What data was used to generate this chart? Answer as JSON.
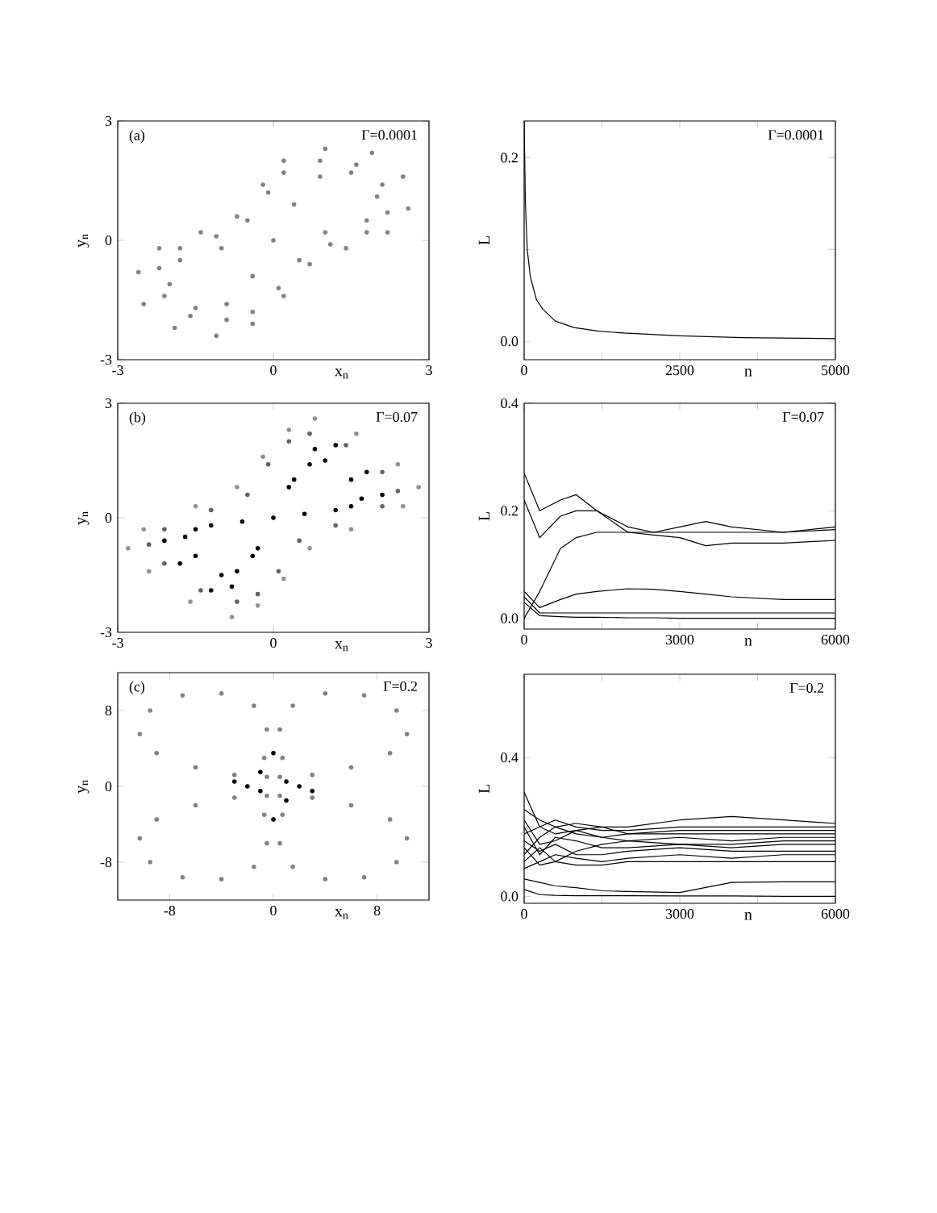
{
  "chart_data": [
    {
      "type": "scatter",
      "xlabel": "x$_{n}$",
      "ylabel": "y$_{n}$",
      "annotations": [
        "(a)",
        "Γ=0.0001"
      ],
      "xlim": [
        -3,
        3
      ],
      "ylim": [
        -3,
        3
      ],
      "xticks": [
        -3,
        0,
        3
      ],
      "yticks": [
        -3,
        0,
        3
      ],
      "series": [
        {
          "color": "#808080",
          "x": [
            0.2,
            1.0,
            1.9,
            2.5,
            2.6,
            2.2,
            1.4,
            0.7,
            0.2,
            -0.4,
            -1.1,
            -1.9,
            -2.5,
            -2.6,
            -2.2,
            -1.4,
            -0.7,
            -0.2
          ],
          "values": [
            2.0,
            2.3,
            2.2,
            1.6,
            0.8,
            0.2,
            -0.2,
            -0.6,
            -1.4,
            -2.1,
            -2.4,
            -2.2,
            -1.6,
            -0.8,
            -0.2,
            0.2,
            0.6,
            1.4
          ]
        },
        {
          "color": "#808080",
          "x": [
            0.2,
            0.9,
            1.6,
            2.1,
            2.2,
            1.8,
            1.1,
            0.5,
            0.1,
            -0.4,
            -0.9,
            -1.6,
            -2.1,
            -2.2,
            -1.8,
            -1.1,
            -0.5,
            -0.1
          ],
          "values": [
            1.7,
            2.0,
            1.9,
            1.4,
            0.7,
            0.2,
            -0.1,
            -0.5,
            -1.2,
            -1.8,
            -2.0,
            -1.9,
            -1.4,
            -0.7,
            -0.2,
            0.1,
            0.5,
            1.2
          ]
        },
        {
          "color": "#808080",
          "x": [
            0.4,
            0.9,
            1.5,
            2.0,
            1.8,
            1.0,
            0,
            -1.0,
            -1.8,
            -2.0,
            -1.5,
            -0.9,
            -0.4
          ],
          "values": [
            0.9,
            1.6,
            1.7,
            1.1,
            0.5,
            0.2,
            0,
            -0.2,
            -0.5,
            -1.1,
            -1.7,
            -1.6,
            -0.9
          ]
        }
      ]
    },
    {
      "type": "line",
      "xlabel": "n",
      "ylabel": "L",
      "annotations": [
        "Γ=0.0001"
      ],
      "xlim": [
        0,
        5000
      ],
      "ylim": [
        -0.02,
        0.24
      ],
      "xticks": [
        0,
        {
          "value": 1250,
          "label": null
        },
        2500,
        {
          "value": 3750,
          "label": null
        },
        5000
      ],
      "yticks": [
        {
          "value": 0,
          "label": "0.0"
        },
        {
          "value": 0.1,
          "label": null
        },
        {
          "value": 0.2,
          "label": "0.2"
        }
      ],
      "x": [
        0,
        20,
        50,
        100,
        200,
        300,
        500,
        800,
        1200,
        1600,
        2500,
        3500,
        5000
      ],
      "series": [
        {
          "color": "#000000",
          "values": [
            0.24,
            0.15,
            0.1,
            0.07,
            0.045,
            0.035,
            0.022,
            0.015,
            0.011,
            0.009,
            0.006,
            0.004,
            0.003
          ]
        }
      ]
    },
    {
      "type": "scatter",
      "xlabel": "x$_{n}$",
      "ylabel": "y$_{n}$",
      "annotations": [
        "(b)",
        "Γ=0.07"
      ],
      "xlim": [
        -3,
        3
      ],
      "ylim": [
        -3,
        3
      ],
      "xticks": [
        -3,
        0,
        3
      ],
      "yticks": [
        -3,
        0,
        3
      ],
      "series": [
        {
          "color": "#909090",
          "x": [
            0.8,
            1.6,
            2.4,
            2.8,
            2.5,
            1.5,
            0.7,
            0.2,
            -0.3,
            -0.8,
            -1.6,
            -2.4,
            -2.8,
            -2.5,
            -1.5,
            -0.7,
            -0.2,
            0.3
          ],
          "values": [
            2.6,
            2.2,
            1.4,
            0.8,
            0.3,
            -0.3,
            -0.8,
            -1.6,
            -2.3,
            -2.6,
            -2.2,
            -1.4,
            -0.8,
            -0.3,
            0.3,
            0.8,
            1.6,
            2.3
          ]
        },
        {
          "color": "#606060",
          "x": [
            0.7,
            1.4,
            2.1,
            2.4,
            2.1,
            1.2,
            0.5,
            0.1,
            -0.3,
            -0.7,
            -1.4,
            -2.1,
            -2.4,
            -2.1,
            -1.2,
            -0.5,
            -0.1,
            0.3
          ],
          "values": [
            2.2,
            1.9,
            1.2,
            0.7,
            0.3,
            -0.2,
            -0.6,
            -1.4,
            -2.0,
            -2.2,
            -1.9,
            -1.2,
            -0.7,
            -0.3,
            0.2,
            0.6,
            1.4,
            2.0
          ]
        },
        {
          "color": "#000000",
          "x": [
            0.4,
            0.8,
            1.2,
            1.8,
            2.1,
            1.5,
            0.6,
            0,
            -0.6,
            -1.5,
            -2.1,
            -1.8,
            -1.2,
            -0.8,
            -0.4
          ],
          "values": [
            1.0,
            1.8,
            1.9,
            1.2,
            0.6,
            0.3,
            0.1,
            0,
            -0.1,
            -0.3,
            -0.6,
            -1.2,
            -1.9,
            -1.8,
            -1.0
          ]
        },
        {
          "color": "#000000",
          "x": [
            0.3,
            0.7,
            1.0,
            1.5,
            1.7,
            1.2,
            -1.2,
            -1.7,
            -1.5,
            -1.0,
            -0.7,
            -0.3
          ],
          "values": [
            0.8,
            1.4,
            1.5,
            1.0,
            0.5,
            0.2,
            -0.2,
            -0.5,
            -1.0,
            -1.5,
            -1.4,
            -0.8
          ]
        }
      ]
    },
    {
      "type": "line",
      "xlabel": "n",
      "ylabel": "L",
      "annotations": [
        "Γ=0.07"
      ],
      "xlim": [
        0,
        6000
      ],
      "ylim": [
        -0.02,
        0.4
      ],
      "xticks": [
        0,
        {
          "value": 1500,
          "label": null
        },
        3000,
        {
          "value": 4500,
          "label": null
        },
        6000
      ],
      "yticks": [
        {
          "value": 0,
          "label": "0.0"
        },
        {
          "value": 0.2,
          "label": "0.2"
        },
        {
          "value": 0.4,
          "label": "0.4"
        }
      ],
      "x": [
        0,
        300,
        700,
        1000,
        1400,
        2000,
        2500,
        3000,
        3500,
        4000,
        5000,
        6000
      ],
      "series": [
        {
          "color": "#000000",
          "values": [
            0.27,
            0.2,
            0.22,
            0.23,
            0.2,
            0.16,
            0.16,
            0.17,
            0.18,
            0.17,
            0.16,
            0.17
          ]
        },
        {
          "color": "#000000",
          "values": [
            0.22,
            0.15,
            0.19,
            0.2,
            0.2,
            0.17,
            0.16,
            0.16,
            0.16,
            0.16,
            0.16,
            0.165
          ]
        },
        {
          "color": "#000000",
          "values": [
            0.0,
            0.05,
            0.13,
            0.15,
            0.16,
            0.16,
            0.155,
            0.15,
            0.135,
            0.14,
            0.14,
            0.145
          ]
        },
        {
          "color": "#000000",
          "values": [
            0.05,
            0.02,
            0.035,
            0.045,
            0.05,
            0.055,
            0.054,
            0.05,
            0.045,
            0.04,
            0.035,
            0.035
          ]
        },
        {
          "color": "#000000",
          "values": [
            0.04,
            0.01,
            0.01,
            0.01,
            0.01,
            0.01,
            0.01,
            0.01,
            0.01,
            0.01,
            0.01,
            0.01
          ]
        },
        {
          "color": "#000000",
          "values": [
            0.03,
            0.005,
            0.003,
            0.002,
            0.002,
            0.001,
            0.001,
            0.0,
            0.0,
            0.0,
            0.0,
            0.0
          ]
        }
      ]
    },
    {
      "type": "scatter",
      "xlabel": "x$_{n}$",
      "ylabel": "y$_{n}$",
      "annotations": [
        "(c)",
        "Γ=0.2"
      ],
      "xlim": [
        -12,
        12
      ],
      "ylim": [
        -12,
        12
      ],
      "xticks": [
        -8,
        0,
        8
      ],
      "yticks": [
        -8,
        0,
        8
      ],
      "series": [
        {
          "color": "#808080",
          "x": [
            -0.5,
            -3,
            -6,
            -9,
            -10.3,
            -9.5,
            -7,
            -4,
            -1.5,
            -0.5,
            0.7
          ],
          "values": [
            1,
            1.2,
            2,
            3.5,
            5.5,
            8,
            9.6,
            9.8,
            8.5,
            6,
            3
          ]
        },
        {
          "color": "#808080",
          "x": [
            0.5,
            3,
            6,
            9,
            10.3,
            9.5,
            7,
            4,
            1.5,
            0.5,
            -0.7
          ],
          "values": [
            1,
            1.2,
            2,
            3.5,
            5.5,
            8,
            9.6,
            9.8,
            8.5,
            6,
            3
          ]
        },
        {
          "color": "#808080",
          "x": [
            -0.5,
            -3,
            -6,
            -9,
            -10.3,
            -9.5,
            -7,
            -4,
            -1.5,
            -0.5,
            0.7
          ],
          "values": [
            -1,
            -1.2,
            -2,
            -3.5,
            -5.5,
            -8,
            -9.6,
            -9.8,
            -8.5,
            -6,
            -3
          ]
        },
        {
          "color": "#808080",
          "x": [
            0.5,
            3,
            6,
            9,
            10.3,
            9.5,
            7,
            4,
            1.5,
            0.5,
            -0.7
          ],
          "values": [
            -1,
            -1.2,
            -2,
            -3.5,
            -5.5,
            -8,
            -9.6,
            -9.8,
            -8.5,
            -6,
            -3
          ]
        },
        {
          "color": "#000000",
          "x": [
            0,
            2,
            0,
            -2
          ],
          "values": [
            3.5,
            0,
            -3.5,
            0
          ]
        },
        {
          "color": "#000000",
          "x": [
            -3,
            -1,
            1,
            3,
            1,
            -1
          ],
          "values": [
            0.5,
            1.5,
            0.5,
            -0.5,
            -1.5,
            -0.5
          ]
        }
      ]
    },
    {
      "type": "line",
      "xlabel": "n",
      "ylabel": "L",
      "annotations": [
        "Γ=0.2"
      ],
      "xlim": [
        0,
        6000
      ],
      "ylim": [
        -0.02,
        0.64
      ],
      "xticks": [
        0,
        {
          "value": 1500,
          "label": null
        },
        3000,
        {
          "value": 4500,
          "label": null
        },
        6000
      ],
      "yticks": [
        {
          "value": 0,
          "label": "0.0"
        },
        {
          "value": 0.2,
          "label": null
        },
        {
          "value": 0.4,
          "label": "0.4"
        }
      ],
      "x": [
        0,
        300,
        600,
        1000,
        1500,
        2000,
        3000,
        4000,
        5000,
        6000
      ],
      "series": [
        {
          "color": "#000000",
          "values": [
            0.25,
            0.22,
            0.2,
            0.21,
            0.2,
            0.2,
            0.22,
            0.23,
            0.22,
            0.21
          ]
        },
        {
          "color": "#000000",
          "values": [
            0.18,
            0.2,
            0.22,
            0.2,
            0.19,
            0.19,
            0.2,
            0.2,
            0.2,
            0.2
          ]
        },
        {
          "color": "#000000",
          "values": [
            0.3,
            0.2,
            0.18,
            0.19,
            0.2,
            0.18,
            0.19,
            0.19,
            0.19,
            0.19
          ]
        },
        {
          "color": "#000000",
          "values": [
            0.12,
            0.17,
            0.2,
            0.18,
            0.17,
            0.18,
            0.18,
            0.18,
            0.18,
            0.18
          ]
        },
        {
          "color": "#000000",
          "values": [
            0.22,
            0.15,
            0.16,
            0.19,
            0.17,
            0.16,
            0.17,
            0.16,
            0.17,
            0.17
          ]
        },
        {
          "color": "#000000",
          "values": [
            0.1,
            0.14,
            0.1,
            0.13,
            0.15,
            0.16,
            0.15,
            0.15,
            0.16,
            0.16
          ]
        },
        {
          "color": "#000000",
          "values": [
            0.2,
            0.12,
            0.17,
            0.16,
            0.14,
            0.14,
            0.15,
            0.14,
            0.15,
            0.15
          ]
        },
        {
          "color": "#000000",
          "values": [
            0.16,
            0.13,
            0.15,
            0.12,
            0.12,
            0.13,
            0.14,
            0.13,
            0.13,
            0.13
          ]
        },
        {
          "color": "#000000",
          "values": [
            0.08,
            0.1,
            0.12,
            0.11,
            0.1,
            0.11,
            0.12,
            0.11,
            0.12,
            0.12
          ]
        },
        {
          "color": "#000000",
          "values": [
            0.14,
            0.09,
            0.1,
            0.09,
            0.09,
            0.1,
            0.1,
            0.1,
            0.1,
            0.1
          ]
        },
        {
          "color": "#000000",
          "values": [
            0.05,
            0.04,
            0.03,
            0.025,
            0.016,
            0.014,
            0.011,
            0.04,
            0.042,
            0.042
          ]
        },
        {
          "color": "#000000",
          "values": [
            0.02,
            0.005,
            0.003,
            0.002,
            0.002,
            0.002,
            0.001,
            0.001,
            0.0,
            0.0
          ]
        }
      ]
    }
  ]
}
